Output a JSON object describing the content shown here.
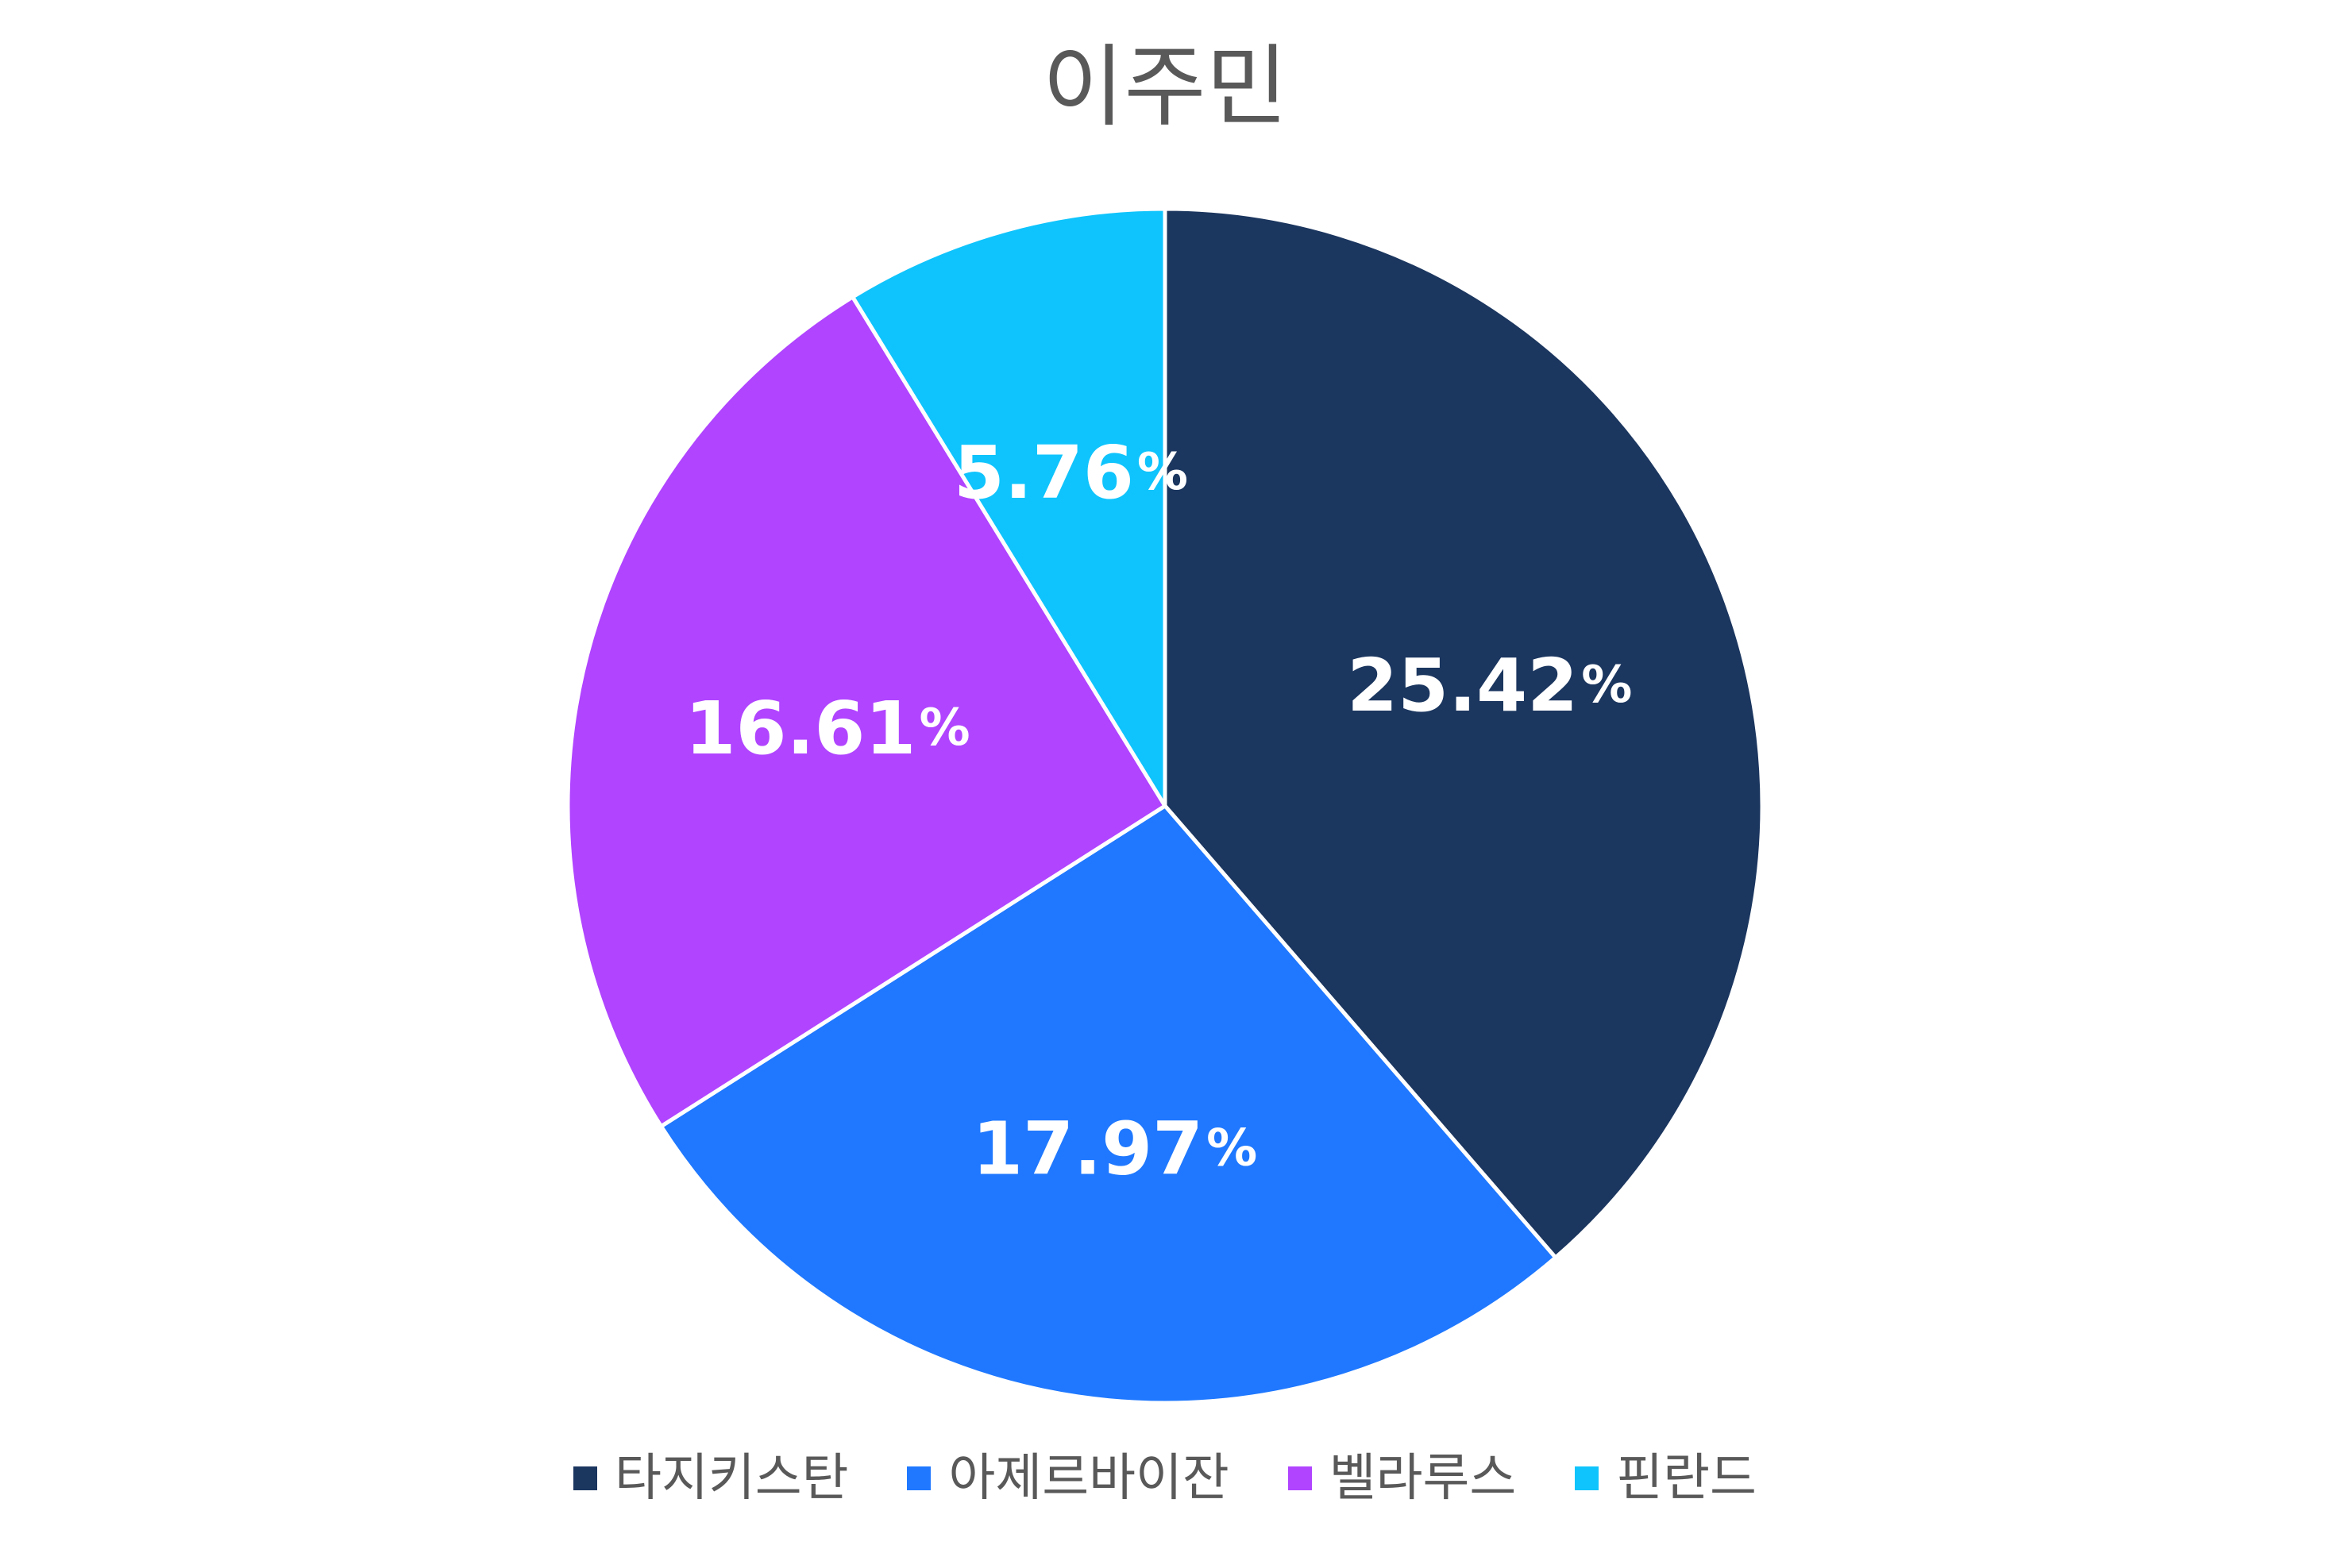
{
  "title": "이주민",
  "colors": {
    "background": "#ffffff",
    "title_text": "#595959",
    "label_text": "#ffffff",
    "slice_border": "#ffffff"
  },
  "chart_data": {
    "type": "pie",
    "title": "이주민",
    "start_angle_deg": 0,
    "direction": "clockwise",
    "legend_position": "bottom",
    "slices": [
      {
        "label": "타지키스탄",
        "value": 25.42,
        "display": "25.42%",
        "color": "#1b365f"
      },
      {
        "label": "아제르바이잔",
        "value": 17.97,
        "display": "17.97%",
        "color": "#1f78ff"
      },
      {
        "label": "벨라루스",
        "value": 16.61,
        "display": "16.61%",
        "color": "#b044ff"
      },
      {
        "label": "핀란드",
        "value": 5.76,
        "display": "5.76%",
        "color": "#0fc4fc"
      }
    ]
  }
}
